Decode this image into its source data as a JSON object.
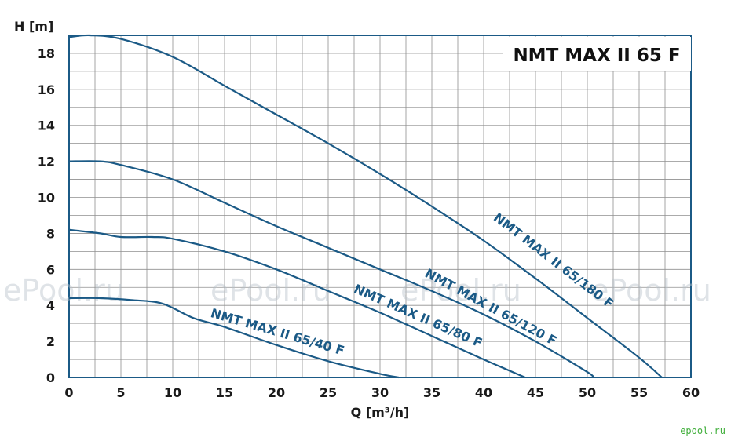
{
  "chart_data": {
    "type": "line",
    "title": "NMT MAX II 65 F",
    "xlabel": "Q [m³/h]",
    "ylabel": "H [m]",
    "xlim": [
      0,
      60
    ],
    "ylim": [
      0,
      19
    ],
    "x_ticks": [
      0,
      5,
      10,
      15,
      20,
      25,
      30,
      35,
      40,
      45,
      50,
      55,
      60
    ],
    "y_ticks": [
      0,
      2,
      4,
      6,
      8,
      10,
      12,
      14,
      16,
      18
    ],
    "grid": true,
    "series": [
      {
        "name": "NMT MAX II 65/180 F",
        "x": [
          0,
          2,
          5,
          10,
          15,
          20,
          25,
          30,
          35,
          40,
          45,
          50,
          55,
          57.2
        ],
        "y": [
          18.9,
          19.0,
          18.8,
          17.8,
          16.2,
          14.6,
          13.0,
          11.3,
          9.5,
          7.6,
          5.5,
          3.3,
          1.1,
          0
        ]
      },
      {
        "name": "NMT MAX II 65/120 F",
        "x": [
          0,
          3,
          5,
          10,
          15,
          20,
          25,
          30,
          35,
          40,
          45,
          50,
          50.5
        ],
        "y": [
          12.0,
          12.0,
          11.8,
          11.0,
          9.7,
          8.4,
          7.2,
          6.0,
          4.8,
          3.5,
          2.0,
          0.3,
          0
        ]
      },
      {
        "name": "NMT MAX II 65/80 F",
        "x": [
          0,
          3,
          5,
          8,
          10,
          15,
          20,
          25,
          30,
          35,
          40,
          44
        ],
        "y": [
          8.2,
          8.0,
          7.8,
          7.8,
          7.7,
          7.0,
          6.0,
          4.8,
          3.6,
          2.3,
          1.0,
          0
        ]
      },
      {
        "name": "NMT MAX II 65/40 F",
        "x": [
          0,
          3,
          6,
          9,
          12,
          15,
          20,
          25,
          30,
          31.8
        ],
        "y": [
          4.4,
          4.4,
          4.3,
          4.1,
          3.3,
          2.8,
          1.8,
          0.9,
          0.2,
          0
        ]
      }
    ],
    "curve_labels": [
      {
        "text": "NMT MAX II 65/180 F",
        "at_x": 46.5,
        "at_y": 6.3
      },
      {
        "text": "NMT MAX II 65/120 F",
        "at_x": 40.5,
        "at_y": 3.7
      },
      {
        "text": "NMT MAX II 65/80 F",
        "at_x": 33.5,
        "at_y": 3.2
      },
      {
        "text": "NMT MAX II 65/40 F",
        "at_x": 20,
        "at_y": 2.3
      }
    ],
    "watermark": "ePool.ru",
    "corner_mark": "epool.ru"
  }
}
